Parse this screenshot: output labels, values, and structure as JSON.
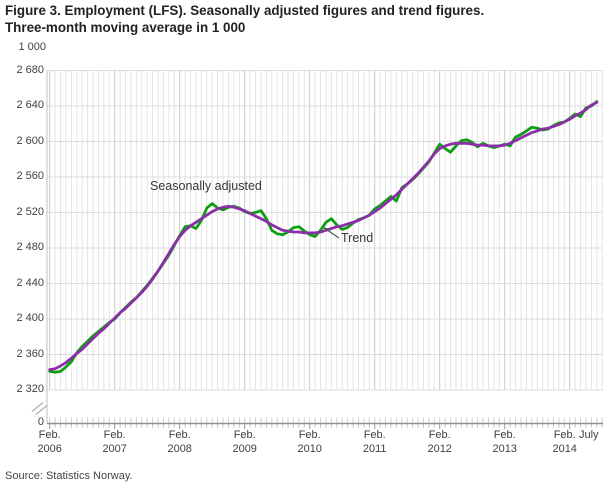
{
  "figure": {
    "title_line1": "Figure 3. Employment (LFS). Seasonally adjusted figures and trend figures.",
    "title_line2": "Three-month moving average in 1 000",
    "source": "Source: Statistics Norway."
  },
  "chart_data": {
    "type": "line",
    "title": "Figure 3. Employment (LFS). Seasonally adjusted figures and trend figures. Three-month moving average in 1 000",
    "unit_label": "1 000",
    "grid": "on",
    "legend_position": "inline-annotations",
    "y_axis": {
      "min": 2320,
      "max": 2680,
      "step": 40,
      "tick_labels": [
        "2 320",
        "2 360",
        "2 400",
        "2 440",
        "2 480",
        "2 520",
        "2 560",
        "2 600",
        "2 640",
        "2 680"
      ],
      "zero_label": "0",
      "axis_break": true
    },
    "x_axis": {
      "start": "Feb 2006",
      "end": "July 2014",
      "months_span": 101,
      "minor_grid": "monthly",
      "major_grid": "yearly",
      "ticks": [
        {
          "label": "Feb.",
          "sublabel": "2006",
          "month_index": 0
        },
        {
          "label": "Feb.",
          "sublabel": "2007",
          "month_index": 12
        },
        {
          "label": "Feb.",
          "sublabel": "2008",
          "month_index": 24
        },
        {
          "label": "Feb.",
          "sublabel": "2009",
          "month_index": 36
        },
        {
          "label": "Feb.",
          "sublabel": "2010",
          "month_index": 48
        },
        {
          "label": "Feb.",
          "sublabel": "2011",
          "month_index": 60
        },
        {
          "label": "Feb.",
          "sublabel": "2012",
          "month_index": 72
        },
        {
          "label": "Feb.",
          "sublabel": "2013",
          "month_index": 84
        },
        {
          "label": "Feb.",
          "sublabel": "2014",
          "month_index": 96
        },
        {
          "label": "July",
          "sublabel": "",
          "month_index": 101
        }
      ]
    },
    "annotations": {
      "seasonally_adjusted": "Seasonally adjusted",
      "trend": "Trend"
    },
    "series": [
      {
        "name": "Seasonally adjusted",
        "color": "#0f9d14",
        "frequency": "monthly",
        "start": "Feb 2006",
        "values": [
          2341,
          2340,
          2341,
          2346,
          2352,
          2362,
          2369,
          2375,
          2381,
          2386,
          2391,
          2396,
          2400,
          2407,
          2413,
          2419,
          2424,
          2431,
          2438,
          2446,
          2454,
          2463,
          2472,
          2483,
          2494,
          2504,
          2505,
          2502,
          2511,
          2525,
          2530,
          2525,
          2523,
          2526,
          2527,
          2525,
          2521,
          2519,
          2520,
          2522,
          2513,
          2500,
          2496,
          2495,
          2498,
          2503,
          2504,
          2499,
          2495,
          2493,
          2500,
          2509,
          2513,
          2506,
          2501,
          2503,
          2508,
          2512,
          2514,
          2517,
          2524,
          2528,
          2533,
          2538,
          2533,
          2548,
          2552,
          2557,
          2563,
          2570,
          2577,
          2587,
          2597,
          2592,
          2588,
          2595,
          2601,
          2602,
          2599,
          2594,
          2598,
          2595,
          2593,
          2595,
          2597,
          2595,
          2605,
          2608,
          2612,
          2616,
          2615,
          2613,
          2614,
          2618,
          2621,
          2622,
          2626,
          2631,
          2628,
          2638,
          2640,
          2645
        ]
      },
      {
        "name": "Trend",
        "color": "#8b2fa8",
        "frequency": "monthly",
        "start": "Feb 2006",
        "values": [
          2343,
          2344,
          2347,
          2351,
          2356,
          2361,
          2366,
          2372,
          2378,
          2384,
          2389,
          2395,
          2401,
          2407,
          2412,
          2418,
          2424,
          2430,
          2437,
          2445,
          2454,
          2464,
          2474,
          2484,
          2493,
          2500,
          2505,
          2509,
          2513,
          2517,
          2521,
          2524,
          2526,
          2527,
          2526,
          2524,
          2522,
          2519,
          2516,
          2513,
          2510,
          2506,
          2503,
          2500,
          2499,
          2498,
          2498,
          2497,
          2497,
          2497,
          2498,
          2500,
          2502,
          2504,
          2505,
          2507,
          2509,
          2511,
          2514,
          2517,
          2521,
          2525,
          2530,
          2535,
          2540,
          2546,
          2552,
          2558,
          2564,
          2571,
          2578,
          2586,
          2592,
          2595,
          2597,
          2598,
          2598,
          2598,
          2597,
          2596,
          2596,
          2595,
          2595,
          2595,
          2596,
          2598,
          2601,
          2604,
          2607,
          2610,
          2612,
          2614,
          2615,
          2617,
          2619,
          2622,
          2625,
          2629,
          2632,
          2636,
          2641,
          2644
        ]
      }
    ]
  }
}
